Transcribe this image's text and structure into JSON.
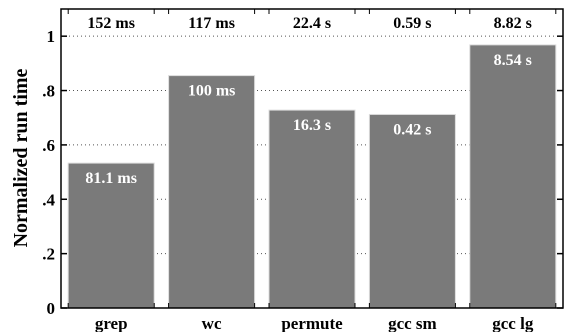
{
  "chart_data": {
    "type": "bar",
    "title": "",
    "xlabel": "",
    "ylabel": "Normalized run time",
    "ylim": [
      0,
      1.1
    ],
    "grid": true,
    "categories": [
      "grep",
      "wc",
      "permute",
      "gcc sm",
      "gcc lg"
    ],
    "values": [
      0.533,
      0.855,
      0.728,
      0.712,
      0.968
    ],
    "bar_labels": [
      "81.1 ms",
      "100 ms",
      "16.3 s",
      "0.42 s",
      "8.54 s"
    ],
    "baseline_labels": [
      "152 ms",
      "117 ms",
      "22.4 s",
      "0.59 s",
      "8.82 s"
    ],
    "yticks": [
      0,
      0.2,
      0.4,
      0.6,
      0.8,
      1.0
    ],
    "ytick_labels": [
      "0",
      ".2",
      ".4",
      ".6",
      ".8",
      "1"
    ],
    "bar_color": "#7a7a7a"
  }
}
